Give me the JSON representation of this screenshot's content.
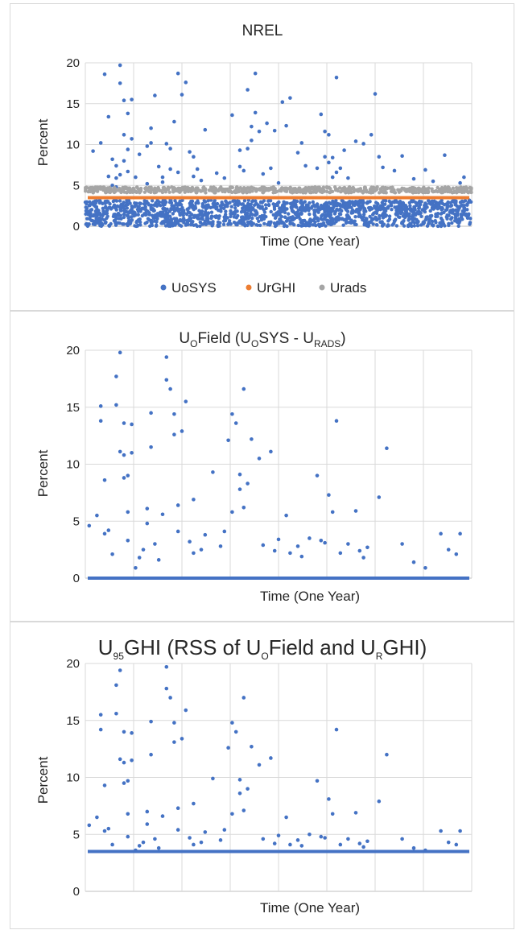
{
  "charts": [
    {
      "title": "NREL",
      "xlabel": "Time (One Year)",
      "ylabel": "Percent",
      "ticks": [
        "0",
        "5",
        "10",
        "15",
        "20"
      ],
      "legend": [
        "UoSYS",
        "UrGHI",
        "Urads"
      ]
    },
    {
      "title": {
        "p1": "U",
        "s1": "O",
        "p2": "Field (U",
        "s2": "O",
        "p3": "SYS - U",
        "s3": "RADS",
        "p4": ")"
      },
      "xlabel": "Time (One Year)",
      "ylabel": "Percent",
      "ticks": [
        "0",
        "5",
        "10",
        "15",
        "20"
      ]
    },
    {
      "title": {
        "p1": "U",
        "s1": "95",
        "p2": "GHI (RSS of U",
        "s2": "O",
        "p3": "Field and U",
        "s3": "R",
        "p4": "GHI)"
      },
      "xlabel": "Time (One Year)",
      "ylabel": "Percent",
      "ticks": [
        "0",
        "5",
        "10",
        "15",
        "20"
      ]
    }
  ],
  "chart_data": [
    {
      "type": "scatter",
      "title": "NREL",
      "xlabel": "Time (One Year)",
      "ylabel": "Percent",
      "ylim": [
        0,
        20
      ],
      "yticks": [
        0,
        5,
        10,
        15,
        20
      ],
      "x_gridlines": 8,
      "grid": true,
      "legend_position": "bottom",
      "series": [
        {
          "name": "UoSYS",
          "color": "#4472C4",
          "band": [
            0,
            3.2
          ],
          "x": [
            0.02,
            0.04,
            0.05,
            0.06,
            0.06,
            0.07,
            0.07,
            0.08,
            0.08,
            0.08,
            0.09,
            0.09,
            0.09,
            0.1,
            0.1,
            0.1,
            0.11,
            0.11,
            0.11,
            0.12,
            0.12,
            0.13,
            0.14,
            0.16,
            0.16,
            0.17,
            0.17,
            0.18,
            0.19,
            0.2,
            0.2,
            0.21,
            0.22,
            0.22,
            0.23,
            0.24,
            0.24,
            0.25,
            0.26,
            0.27,
            0.28,
            0.28,
            0.29,
            0.3,
            0.31,
            0.34,
            0.36,
            0.38,
            0.4,
            0.4,
            0.41,
            0.42,
            0.42,
            0.43,
            0.43,
            0.44,
            0.44,
            0.45,
            0.46,
            0.47,
            0.48,
            0.49,
            0.5,
            0.51,
            0.52,
            0.53,
            0.55,
            0.56,
            0.57,
            0.6,
            0.61,
            0.62,
            0.62,
            0.63,
            0.63,
            0.64,
            0.64,
            0.65,
            0.65,
            0.66,
            0.67,
            0.68,
            0.7,
            0.72,
            0.74,
            0.75,
            0.76,
            0.77,
            0.8,
            0.82,
            0.85,
            0.88,
            0.9,
            0.93,
            0.97,
            0.98
          ],
          "y": [
            9.2,
            10.2,
            18.6,
            13.4,
            6.1,
            8.2,
            5.0,
            4.8,
            7.4,
            5.9,
            19.7,
            17.5,
            6.3,
            15.4,
            11.2,
            8.0,
            13.8,
            9.4,
            6.7,
            10.7,
            15.5,
            6.0,
            8.8,
            5.2,
            9.8,
            10.2,
            12.0,
            16.0,
            7.3,
            6.0,
            5.4,
            10.1,
            9.5,
            7.0,
            12.8,
            18.7,
            6.6,
            16.1,
            17.6,
            9.1,
            8.5,
            6.1,
            7.0,
            5.6,
            11.8,
            6.5,
            5.9,
            13.6,
            7.3,
            9.3,
            6.8,
            16.7,
            9.5,
            12.2,
            10.5,
            18.7,
            13.9,
            11.6,
            6.4,
            12.6,
            7.1,
            11.7,
            5.3,
            15.2,
            12.3,
            15.7,
            9.0,
            10.2,
            7.4,
            7.1,
            13.7,
            11.6,
            8.5,
            11.2,
            7.8,
            6.0,
            8.4,
            18.2,
            6.6,
            7.1,
            9.3,
            5.9,
            10.4,
            10.1,
            11.2,
            16.2,
            8.5,
            7.2,
            6.8,
            8.6,
            5.8,
            6.9,
            5.5,
            8.7,
            5.3,
            6.0
          ]
        },
        {
          "name": "UrGHI",
          "color": "#ED7D31",
          "y": 3.5
        },
        {
          "name": "Urads",
          "color": "#A5A5A5",
          "band": [
            4.1,
            4.8
          ]
        }
      ]
    },
    {
      "type": "scatter",
      "title": "UOField (UOSYS - URADS)",
      "xlabel": "Time (One Year)",
      "ylabel": "Percent",
      "ylim": [
        0,
        20
      ],
      "yticks": [
        0,
        5,
        10,
        15,
        20
      ],
      "x_gridlines": 8,
      "grid": true,
      "series": [
        {
          "name": "",
          "color": "#4472C4",
          "baseline": 0,
          "x": [
            0.01,
            0.03,
            0.04,
            0.04,
            0.05,
            0.05,
            0.06,
            0.07,
            0.08,
            0.08,
            0.09,
            0.09,
            0.1,
            0.1,
            0.1,
            0.11,
            0.11,
            0.11,
            0.12,
            0.12,
            0.13,
            0.14,
            0.15,
            0.16,
            0.16,
            0.17,
            0.17,
            0.18,
            0.19,
            0.2,
            0.21,
            0.21,
            0.22,
            0.23,
            0.23,
            0.24,
            0.24,
            0.25,
            0.26,
            0.27,
            0.28,
            0.28,
            0.3,
            0.31,
            0.33,
            0.35,
            0.36,
            0.37,
            0.38,
            0.38,
            0.39,
            0.4,
            0.4,
            0.41,
            0.41,
            0.42,
            0.43,
            0.45,
            0.46,
            0.48,
            0.49,
            0.5,
            0.52,
            0.53,
            0.55,
            0.56,
            0.58,
            0.6,
            0.61,
            0.62,
            0.63,
            0.64,
            0.65,
            0.66,
            0.68,
            0.7,
            0.71,
            0.72,
            0.73,
            0.76,
            0.78,
            0.82,
            0.85,
            0.88,
            0.92,
            0.94,
            0.96,
            0.97
          ],
          "y": [
            4.6,
            5.5,
            15.1,
            13.8,
            8.6,
            3.9,
            4.2,
            2.1,
            17.7,
            15.2,
            19.8,
            11.1,
            13.6,
            10.8,
            8.8,
            9.0,
            5.8,
            3.3,
            11.0,
            13.5,
            0.9,
            1.8,
            2.5,
            4.8,
            6.1,
            11.5,
            14.5,
            3.0,
            1.6,
            5.6,
            19.4,
            17.4,
            16.6,
            12.6,
            14.4,
            4.1,
            6.4,
            12.9,
            15.5,
            3.2,
            2.2,
            6.9,
            2.5,
            3.8,
            9.3,
            2.8,
            4.1,
            12.1,
            5.8,
            14.4,
            13.6,
            7.8,
            9.1,
            6.2,
            16.6,
            8.3,
            12.2,
            10.5,
            2.9,
            11.1,
            2.4,
            3.4,
            5.5,
            2.2,
            2.8,
            1.9,
            3.5,
            9.0,
            3.3,
            3.1,
            7.3,
            5.8,
            13.8,
            2.2,
            3.0,
            5.9,
            2.4,
            1.8,
            2.7,
            7.1,
            11.4,
            3.0,
            1.4,
            0.9,
            3.9,
            2.5,
            2.1,
            3.9
          ]
        }
      ]
    },
    {
      "type": "scatter",
      "title": "U95GHI (RSS of UOField and URGHI)",
      "xlabel": "Time (One Year)",
      "ylabel": "Percent",
      "ylim": [
        0,
        20
      ],
      "yticks": [
        0,
        5,
        10,
        15,
        20
      ],
      "x_gridlines": 8,
      "grid": true,
      "series": [
        {
          "name": "",
          "color": "#4472C4",
          "baseline": 3.5,
          "x": [
            0.01,
            0.03,
            0.04,
            0.04,
            0.05,
            0.05,
            0.06,
            0.07,
            0.08,
            0.08,
            0.09,
            0.09,
            0.1,
            0.1,
            0.1,
            0.11,
            0.11,
            0.11,
            0.12,
            0.12,
            0.13,
            0.14,
            0.15,
            0.16,
            0.16,
            0.17,
            0.17,
            0.18,
            0.19,
            0.2,
            0.21,
            0.21,
            0.22,
            0.23,
            0.23,
            0.24,
            0.24,
            0.25,
            0.26,
            0.27,
            0.28,
            0.28,
            0.3,
            0.31,
            0.33,
            0.35,
            0.36,
            0.37,
            0.38,
            0.38,
            0.39,
            0.4,
            0.4,
            0.41,
            0.41,
            0.42,
            0.43,
            0.45,
            0.46,
            0.48,
            0.49,
            0.5,
            0.52,
            0.53,
            0.55,
            0.56,
            0.58,
            0.6,
            0.61,
            0.62,
            0.63,
            0.64,
            0.65,
            0.66,
            0.68,
            0.7,
            0.71,
            0.72,
            0.73,
            0.76,
            0.78,
            0.82,
            0.85,
            0.88,
            0.92,
            0.94,
            0.96,
            0.97
          ],
          "y": [
            5.8,
            6.5,
            15.5,
            14.2,
            9.3,
            5.3,
            5.5,
            4.1,
            18.1,
            15.6,
            19.4,
            11.6,
            14.0,
            11.3,
            9.5,
            9.7,
            6.8,
            4.8,
            11.5,
            13.9,
            3.6,
            4.0,
            4.3,
            5.9,
            7.0,
            12.0,
            14.9,
            4.6,
            3.8,
            6.6,
            19.7,
            17.8,
            17.0,
            13.1,
            14.8,
            5.4,
            7.3,
            13.4,
            15.9,
            4.7,
            4.1,
            7.7,
            4.3,
            5.2,
            9.9,
            4.5,
            5.4,
            12.6,
            6.8,
            14.8,
            14.0,
            8.6,
            9.8,
            7.1,
            17.0,
            9.0,
            12.7,
            11.1,
            4.6,
            11.7,
            4.2,
            4.9,
            6.5,
            4.1,
            4.5,
            4.0,
            5.0,
            9.7,
            4.8,
            4.7,
            8.1,
            6.8,
            14.2,
            4.1,
            4.6,
            6.9,
            4.2,
            3.9,
            4.4,
            7.9,
            12.0,
            4.6,
            3.8,
            3.6,
            5.3,
            4.3,
            4.1,
            5.3
          ]
        }
      ]
    }
  ]
}
